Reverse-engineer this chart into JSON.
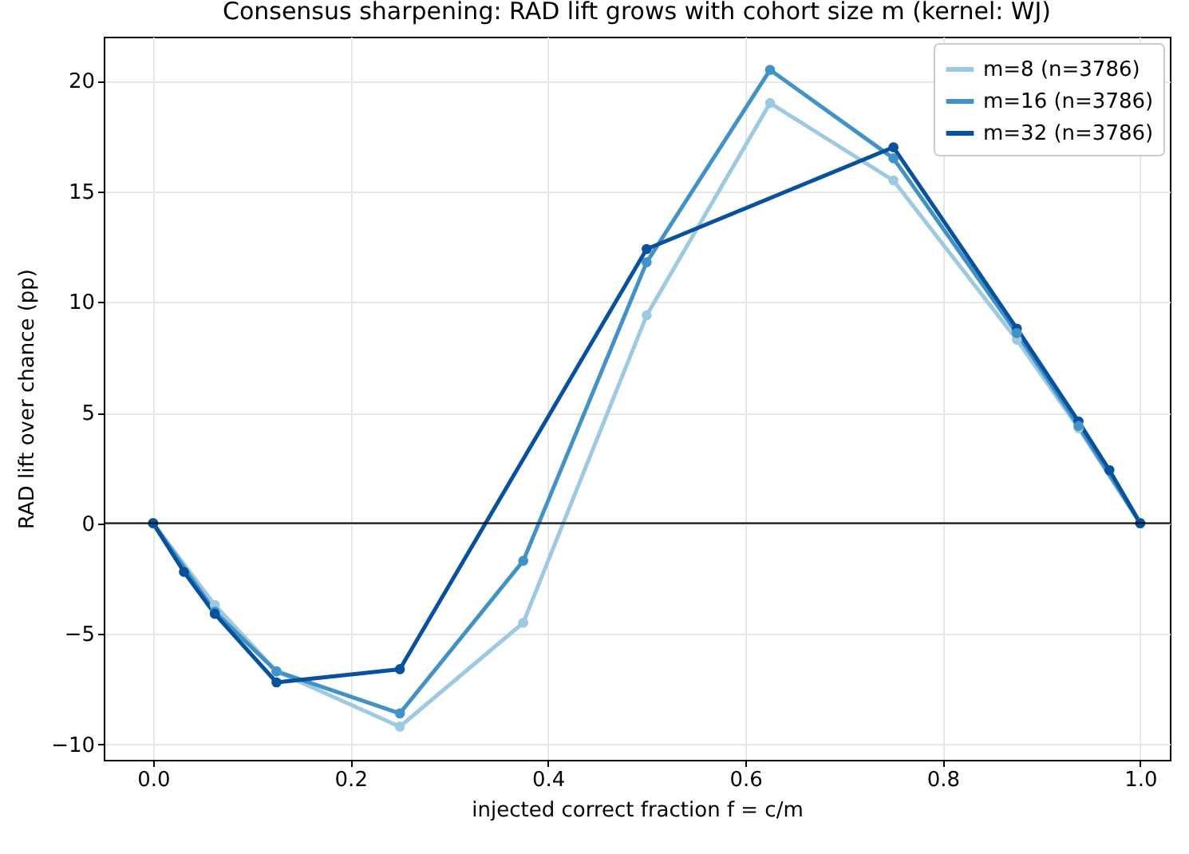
{
  "chart_data": {
    "type": "line",
    "title": "Consensus sharpening: RAD lift grows with cohort size m (kernel: WJ)",
    "xlabel": "injected correct fraction  f = c/m",
    "ylabel": "RAD lift over chance (pp)",
    "series": [
      {
        "name": "m=8 (n=3786)",
        "color": "#9ecae1",
        "x": [
          0,
          0.0625,
          0.125,
          0.25,
          0.375,
          0.5,
          0.625,
          0.75,
          0.875,
          0.9375,
          1
        ],
        "values": [
          0,
          -3.7,
          -6.7,
          -9.2,
          -4.5,
          9.4,
          19.0,
          15.5,
          8.3,
          4.3,
          0
        ]
      },
      {
        "name": "m=16 (n=3786)",
        "color": "#4292c6",
        "x": [
          0,
          0.0625,
          0.125,
          0.25,
          0.375,
          0.5,
          0.625,
          0.75,
          0.875,
          0.9375,
          1
        ],
        "values": [
          0,
          -4.0,
          -6.7,
          -8.6,
          -1.7,
          11.8,
          20.5,
          16.5,
          8.6,
          4.4,
          0
        ]
      },
      {
        "name": "m=32 (n=3786)",
        "color": "#08519c",
        "x": [
          0,
          0.03125,
          0.0625,
          0.125,
          0.25,
          0.5,
          0.75,
          0.875,
          0.9375,
          0.96875,
          1
        ],
        "values": [
          0,
          -2.2,
          -4.1,
          -7.2,
          -6.6,
          12.4,
          17.0,
          8.8,
          4.6,
          2.4,
          0
        ]
      }
    ],
    "xlim": [
      -0.05,
      1.03
    ],
    "ylim": [
      -10.7,
      22
    ],
    "xticks": [
      {
        "value": 0,
        "label": "0.0"
      },
      0.2,
      0.4,
      0.6,
      0.8,
      {
        "value": 1,
        "label": "1.0"
      }
    ],
    "yticks": [
      {
        "value": -10,
        "label": "−10"
      },
      {
        "value": -5,
        "label": "−5"
      },
      0,
      5,
      10,
      15,
      20
    ],
    "grid": true,
    "legend": "top right",
    "marker": "circle",
    "line_style": "solid",
    "ref_lines": [
      {
        "axis": "y",
        "value": 0,
        "color": "#000000"
      }
    ]
  }
}
